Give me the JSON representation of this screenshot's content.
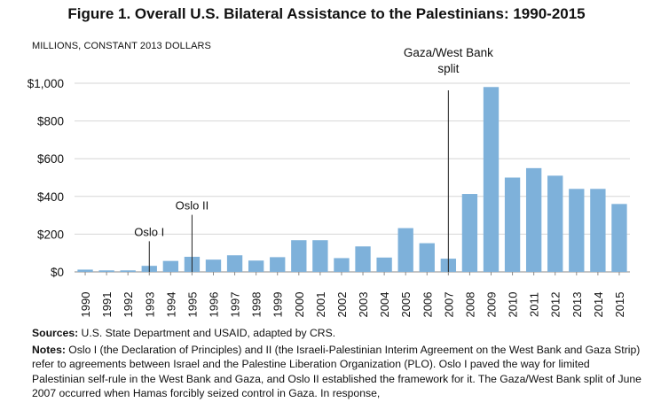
{
  "figure_title": "Figure 1. Overall U.S. Bilateral Assistance to the Palestinians: 1990-2015",
  "units_label": "MILLIONS, CONSTANT 2013  DOLLARS",
  "chart_data": {
    "type": "bar",
    "title": "Figure 1. Overall U.S. Bilateral Assistance to the Palestinians: 1990-2015",
    "xlabel": "",
    "ylabel": "MILLIONS, CONSTANT 2013  DOLLARS",
    "categories": [
      "1990",
      "1991",
      "1992",
      "1993",
      "1994",
      "1995",
      "1996",
      "1997",
      "1998",
      "1999",
      "2000",
      "2001",
      "2002",
      "2003",
      "2004",
      "2005",
      "2006",
      "2007",
      "2008",
      "2009",
      "2010",
      "2011",
      "2012",
      "2013",
      "2014",
      "2015"
    ],
    "values": [
      12,
      8,
      8,
      32,
      58,
      80,
      65,
      88,
      60,
      78,
      168,
      168,
      73,
      135,
      76,
      232,
      152,
      70,
      413,
      980,
      500,
      550,
      510,
      440,
      440,
      360
    ],
    "ylim": [
      0,
      1000
    ],
    "yticks": [
      0,
      200,
      400,
      600,
      800,
      1000
    ],
    "ytick_labels": [
      "$0",
      "$200",
      "$400",
      "$600",
      "$800",
      "$1,000"
    ],
    "bar_color": "#7eb1da",
    "grid": true,
    "annotations": [
      {
        "label": "Oslo I",
        "year": "1993",
        "value": 200
      },
      {
        "label": "Oslo II",
        "year": "1995",
        "value": 340
      },
      {
        "label_lines": [
          "Gaza/West Bank",
          "split"
        ],
        "year": "2007",
        "value": 1000
      }
    ]
  },
  "sources": {
    "label": "Sources:",
    "text": " U.S. State Department and USAID, adapted by CRS."
  },
  "notes": {
    "label": "Notes:",
    "text": " Oslo I (the Declaration of Principles) and II (the Israeli-Palestinian Interim Agreement on the West Bank and Gaza Strip) refer to agreements between Israel and the Palestine Liberation Organization (PLO). Oslo I paved the way for limited Palestinian self-rule in the West Bank and Gaza, and Oslo II established the framework for it. The Gaza/West Bank split of June 2007 occurred when Hamas forcibly seized control in Gaza. In response,"
  }
}
